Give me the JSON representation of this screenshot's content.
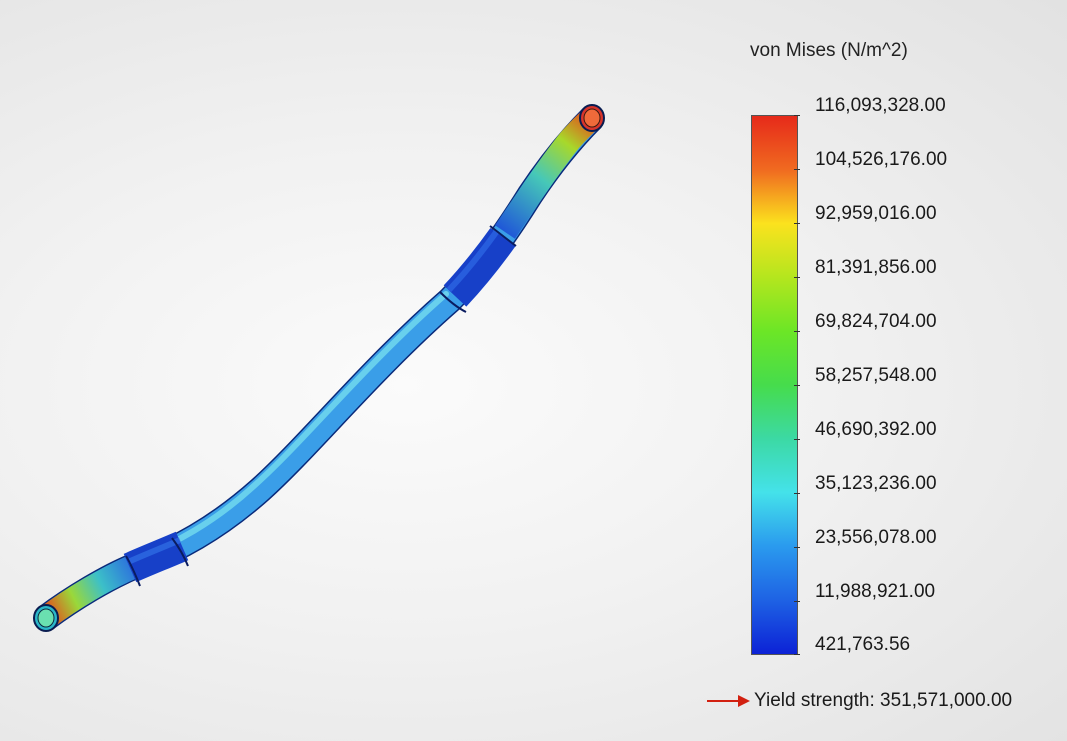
{
  "legend": {
    "title": "von Mises (N/m^2)",
    "ticks": [
      "116,093,328.00",
      "104,526,176.00",
      "92,959,016.00",
      "81,391,856.00",
      "69,824,704.00",
      "58,257,548.00",
      "46,690,392.00",
      "35,123,236.00",
      "23,556,078.00",
      "11,988,921.00",
      "421,763.56"
    ],
    "yield_label": "Yield strength: 351,571,000.00"
  },
  "colors": {
    "max": "#e62a1a",
    "mid": "#46dc4c",
    "min": "#0c22d6",
    "pipe_body": "#3a9ee8",
    "yield_arrow": "#d22010"
  }
}
